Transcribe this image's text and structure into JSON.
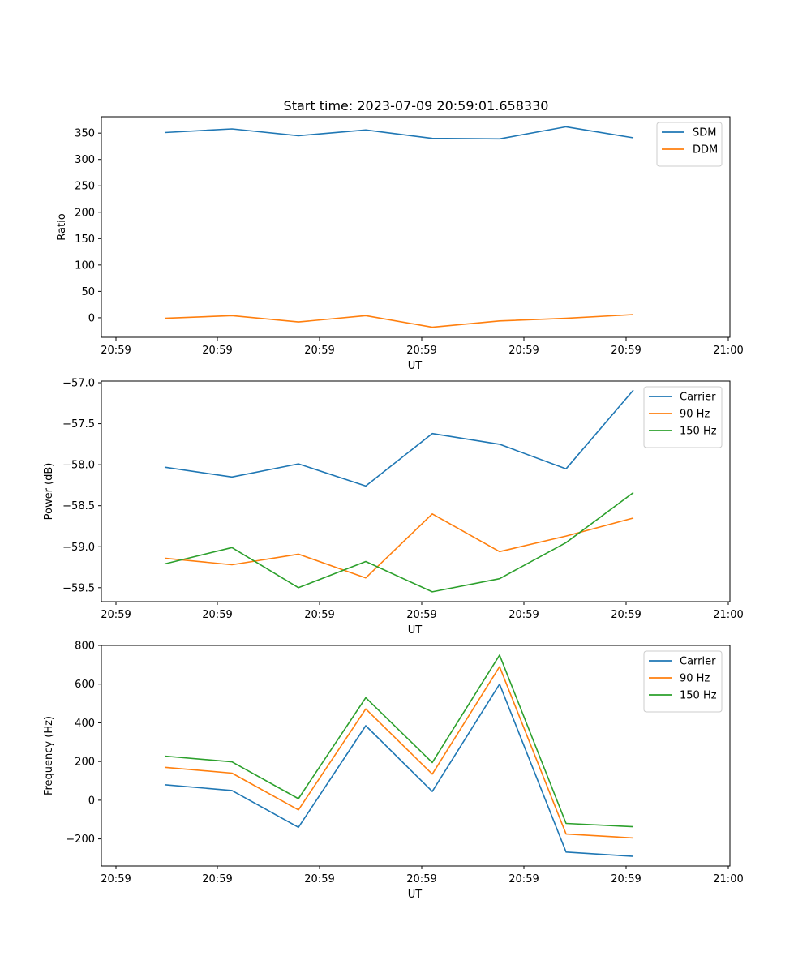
{
  "figure": {
    "title": "Start time: 2023-07-09 20:59:01.658330"
  },
  "chart_data": [
    {
      "type": "line",
      "id": "ratio",
      "xlabel": "UT",
      "ylabel": "Ratio",
      "x_tick_labels": [
        "20:59",
        "20:59",
        "20:59",
        "20:59",
        "20:59",
        "20:59",
        "20:59"
      ],
      "x_tick_end_label": "21:00",
      "yticks": [
        0,
        50,
        100,
        150,
        200,
        250,
        300,
        350
      ],
      "ylim": [
        -37,
        381
      ],
      "legend_position": "top-right",
      "series": [
        {
          "name": "SDM",
          "color": "#1f77b4",
          "values": [
            351,
            358,
            345,
            356,
            340,
            339,
            362,
            341
          ]
        },
        {
          "name": "DDM",
          "color": "#ff7f0e",
          "values": [
            -1,
            4,
            -8,
            4,
            -18,
            -6,
            -1,
            6
          ]
        }
      ]
    },
    {
      "type": "line",
      "id": "power",
      "xlabel": "UT",
      "ylabel": "Power (dB)",
      "x_tick_labels": [
        "20:59",
        "20:59",
        "20:59",
        "20:59",
        "20:59",
        "20:59",
        "20:59"
      ],
      "x_tick_end_label": "21:00",
      "yticks": [
        -59.5,
        -59.0,
        -58.5,
        -58.0,
        -57.5,
        -57.0
      ],
      "ytick_labels": [
        "−59.5",
        "−59.0",
        "−58.5",
        "−58.0",
        "−57.5",
        "−57.0"
      ],
      "ylim": [
        -59.67,
        -56.98
      ],
      "legend_position": "top-right",
      "series": [
        {
          "name": "Carrier",
          "color": "#1f77b4",
          "values": [
            -58.03,
            -58.15,
            -57.99,
            -58.26,
            -57.62,
            -57.75,
            -58.05,
            -57.09
          ]
        },
        {
          "name": "90 Hz",
          "color": "#ff7f0e",
          "values": [
            -59.14,
            -59.22,
            -59.09,
            -59.38,
            -58.6,
            -59.06,
            -58.87,
            -58.65
          ]
        },
        {
          "name": "150 Hz",
          "color": "#2ca02c",
          "values": [
            -59.21,
            -59.01,
            -59.5,
            -59.18,
            -59.55,
            -59.39,
            -58.95,
            -58.34
          ]
        }
      ]
    },
    {
      "type": "line",
      "id": "frequency",
      "xlabel": "UT",
      "ylabel": "Frequency (Hz)",
      "x_tick_labels": [
        "20:59",
        "20:59",
        "20:59",
        "20:59",
        "20:59",
        "20:59",
        "20:59"
      ],
      "x_tick_end_label": "21:00",
      "yticks": [
        -200,
        0,
        200,
        400,
        600,
        800
      ],
      "ytick_labels": [
        "−200",
        "0",
        "200",
        "400",
        "600",
        "800"
      ],
      "ylim": [
        -340,
        800
      ],
      "legend_position": "top-right",
      "series": [
        {
          "name": "Carrier",
          "color": "#1f77b4",
          "values": [
            80,
            50,
            -140,
            385,
            45,
            600,
            -268,
            -290
          ]
        },
        {
          "name": "90 Hz",
          "color": "#ff7f0e",
          "values": [
            170,
            140,
            -50,
            472,
            135,
            690,
            -175,
            -195
          ]
        },
        {
          "name": "150 Hz",
          "color": "#2ca02c",
          "values": [
            228,
            198,
            8,
            530,
            195,
            750,
            -120,
            -137
          ]
        }
      ]
    }
  ]
}
